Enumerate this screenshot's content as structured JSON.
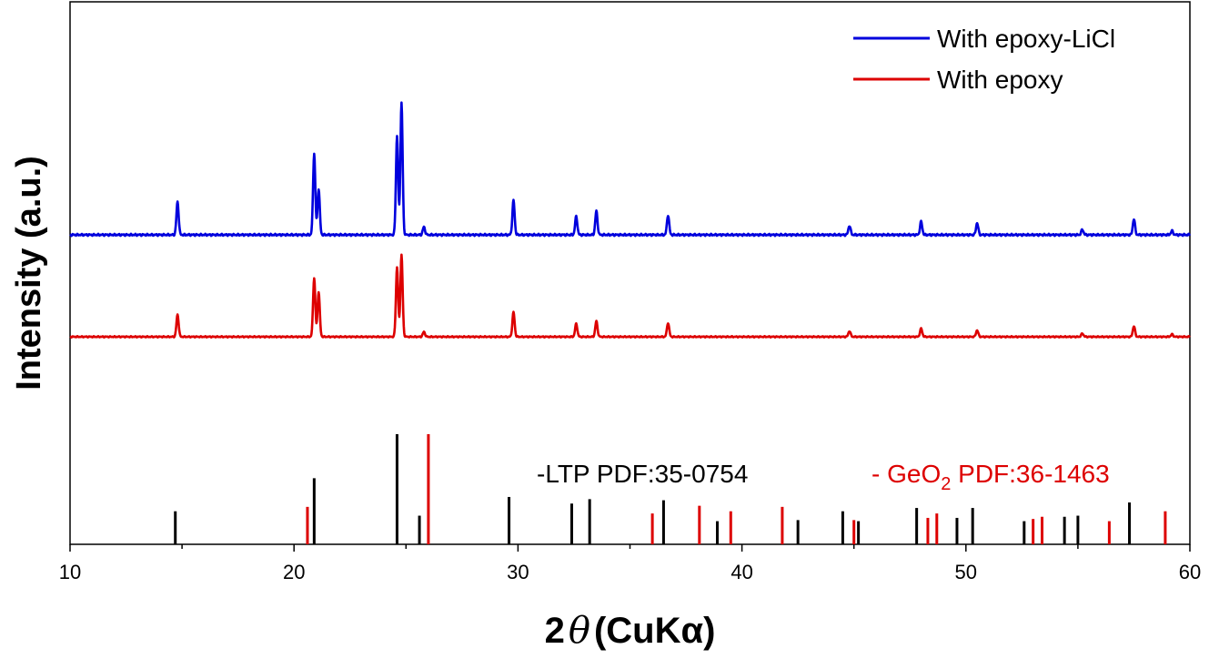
{
  "chart_data": {
    "type": "line",
    "title": "",
    "xlabel": "2θ (CuKα)",
    "xlabel_parts": {
      "prefix": "2",
      "symbol": "θ",
      "suffix": "(CuKα)"
    },
    "ylabel": "Intensity (a.u.)",
    "xlim": [
      10,
      60
    ],
    "x_ticks": [
      10,
      20,
      30,
      40,
      50,
      60
    ],
    "y_ticks_shown": false,
    "grid": false,
    "legend_position": "top-right",
    "series": [
      {
        "name": "With epoxy-LiCl",
        "color": "#0000dd",
        "peaks": [
          {
            "x": 14.8,
            "h": 0.25
          },
          {
            "x": 20.9,
            "h": 0.62
          },
          {
            "x": 21.1,
            "h": 0.35
          },
          {
            "x": 24.6,
            "h": 0.75
          },
          {
            "x": 24.8,
            "h": 1.0
          },
          {
            "x": 25.8,
            "h": 0.06
          },
          {
            "x": 29.8,
            "h": 0.26
          },
          {
            "x": 32.6,
            "h": 0.14
          },
          {
            "x": 33.5,
            "h": 0.18
          },
          {
            "x": 36.7,
            "h": 0.15
          },
          {
            "x": 44.8,
            "h": 0.07
          },
          {
            "x": 48.0,
            "h": 0.1
          },
          {
            "x": 50.5,
            "h": 0.09
          },
          {
            "x": 55.2,
            "h": 0.04
          },
          {
            "x": 57.5,
            "h": 0.12
          },
          {
            "x": 59.2,
            "h": 0.03
          }
        ]
      },
      {
        "name": "With epoxy",
        "color": "#dd0000",
        "peaks": [
          {
            "x": 14.8,
            "h": 0.27
          },
          {
            "x": 20.9,
            "h": 0.72
          },
          {
            "x": 21.1,
            "h": 0.55
          },
          {
            "x": 24.6,
            "h": 0.85
          },
          {
            "x": 24.8,
            "h": 1.0
          },
          {
            "x": 25.8,
            "h": 0.06
          },
          {
            "x": 29.8,
            "h": 0.3
          },
          {
            "x": 32.6,
            "h": 0.16
          },
          {
            "x": 33.5,
            "h": 0.19
          },
          {
            "x": 36.7,
            "h": 0.17
          },
          {
            "x": 44.8,
            "h": 0.07
          },
          {
            "x": 48.0,
            "h": 0.1
          },
          {
            "x": 50.5,
            "h": 0.08
          },
          {
            "x": 55.2,
            "h": 0.04
          },
          {
            "x": 57.5,
            "h": 0.13
          },
          {
            "x": 59.2,
            "h": 0.03
          }
        ]
      }
    ],
    "reference_patterns": [
      {
        "label": "-LTP PDF:35-0754",
        "color": "#000000",
        "lines": [
          {
            "x": 14.7,
            "h": 0.3
          },
          {
            "x": 20.9,
            "h": 0.6
          },
          {
            "x": 24.6,
            "h": 1.0
          },
          {
            "x": 25.6,
            "h": 0.26
          },
          {
            "x": 29.6,
            "h": 0.43
          },
          {
            "x": 32.4,
            "h": 0.37
          },
          {
            "x": 33.2,
            "h": 0.41
          },
          {
            "x": 36.5,
            "h": 0.4
          },
          {
            "x": 38.9,
            "h": 0.21
          },
          {
            "x": 42.5,
            "h": 0.22
          },
          {
            "x": 44.5,
            "h": 0.3
          },
          {
            "x": 45.2,
            "h": 0.21
          },
          {
            "x": 47.8,
            "h": 0.33
          },
          {
            "x": 49.6,
            "h": 0.24
          },
          {
            "x": 50.3,
            "h": 0.33
          },
          {
            "x": 52.6,
            "h": 0.21
          },
          {
            "x": 54.4,
            "h": 0.25
          },
          {
            "x": 55.0,
            "h": 0.26
          },
          {
            "x": 57.3,
            "h": 0.38
          }
        ]
      },
      {
        "label_prefix": "- GeO",
        "label_subscript": "2",
        "label_suffix": " PDF:36-1463",
        "color": "#dd0000",
        "lines": [
          {
            "x": 20.6,
            "h": 0.34
          },
          {
            "x": 26.0,
            "h": 1.0
          },
          {
            "x": 36.0,
            "h": 0.28
          },
          {
            "x": 38.1,
            "h": 0.35
          },
          {
            "x": 39.5,
            "h": 0.3
          },
          {
            "x": 41.8,
            "h": 0.34
          },
          {
            "x": 45.0,
            "h": 0.22
          },
          {
            "x": 48.3,
            "h": 0.24
          },
          {
            "x": 48.7,
            "h": 0.28
          },
          {
            "x": 53.0,
            "h": 0.23
          },
          {
            "x": 53.4,
            "h": 0.25
          },
          {
            "x": 56.4,
            "h": 0.21
          },
          {
            "x": 58.9,
            "h": 0.3
          }
        ]
      }
    ]
  }
}
